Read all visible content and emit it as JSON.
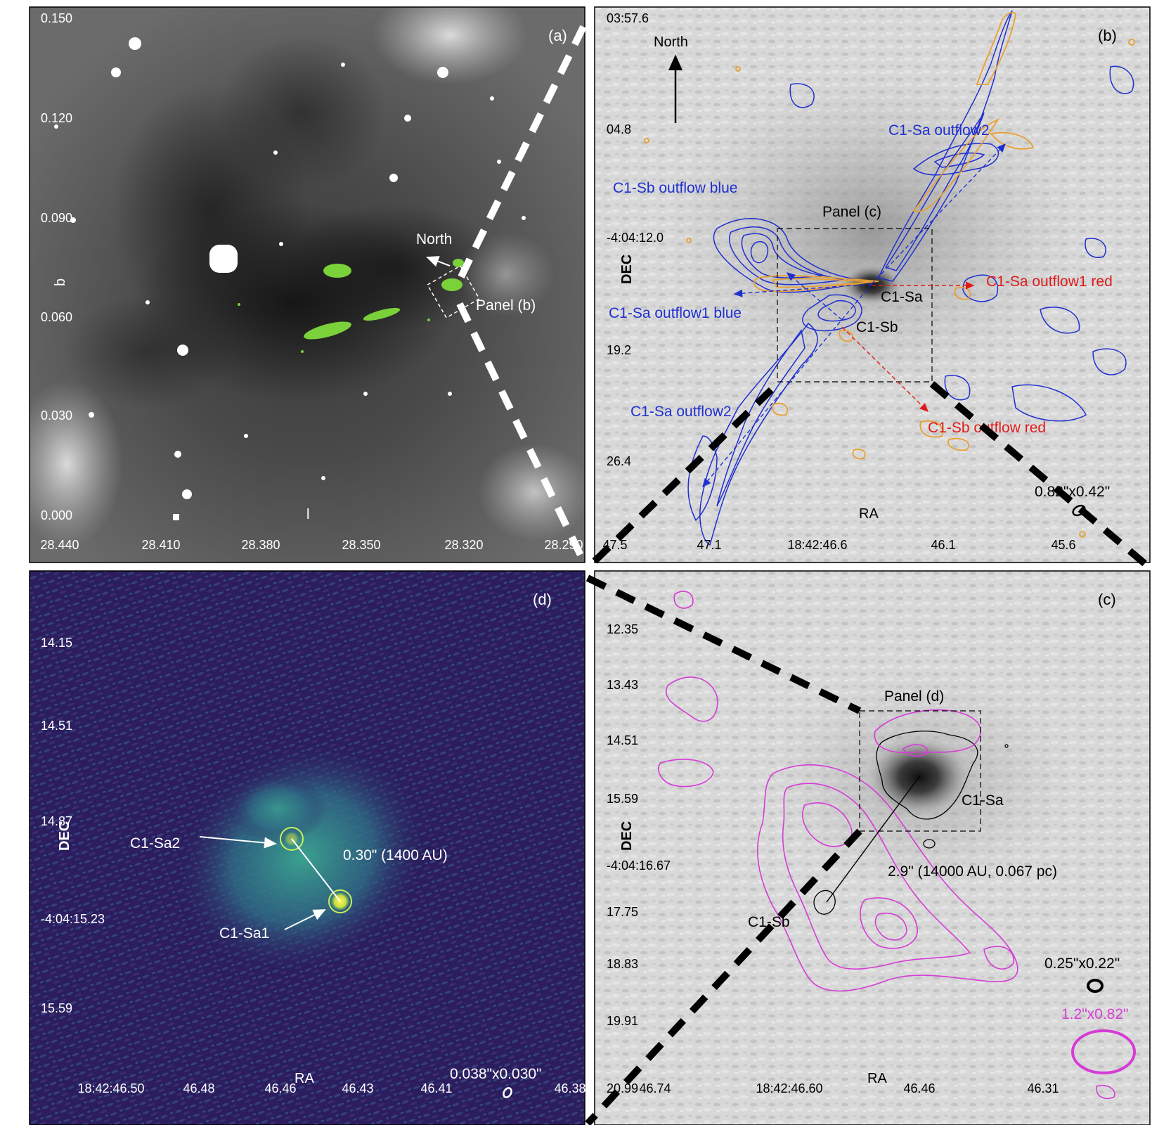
{
  "colors": {
    "blue_contour": "#1f2fd0",
    "orange_contour": "#e8a030",
    "red_arrow": "#e01a1a",
    "magenta_contour": "#d63cd6",
    "green_spots": "#7ad13a",
    "panel_d_background": "#2b1d5e",
    "panel_d_emission": "#2f8f8a"
  },
  "panel_a": {
    "letter": "(a)",
    "ylabel": "b",
    "xlabel": "l",
    "north_label": "North",
    "box_label": "Panel (b)",
    "xticks": [
      "28.440",
      "28.410",
      "28.380",
      "28.350",
      "28.320",
      "28.290"
    ],
    "yticks": [
      "0.150",
      "0.120",
      "0.090",
      "0.060",
      "0.030",
      "0.000"
    ]
  },
  "panel_b": {
    "letter": "(b)",
    "north_label": "North",
    "xlabel": "RA",
    "ylabel": "DEC",
    "box_label": "Panel (c)",
    "beam_label": "0.82\"x0.42\"",
    "xticks": [
      "47.5",
      "47.1",
      "18:42:46.6",
      "46.1",
      "45.6"
    ],
    "yticks": [
      "03:57.6",
      "04.8",
      "-4:04:12.0",
      "19.2",
      "26.4"
    ],
    "labels": {
      "sb_blue": "C1-Sb outflow blue",
      "sa_outflow2_top": "C1-Sa outflow2",
      "sa_outflow1_red": "C1-Sa outflow1 red",
      "sa": "C1-Sa",
      "sa_outflow1_blue": "C1-Sa outflow1 blue",
      "sb": "C1-Sb",
      "sa_outflow2_bottom": "C1-Sa outflow2",
      "sb_red": "C1-Sb outflow red"
    }
  },
  "panel_c": {
    "letter": "(c)",
    "xlabel": "RA",
    "ylabel": "DEC",
    "box_label": "Panel (d)",
    "sa_label": "C1-Sa",
    "sb_label": "C1-Sb",
    "separation_label": "2.9\" (14000 AU, 0.067 pc)",
    "beam_black": "0.25\"x0.22\"",
    "beam_magenta": "1.2\"x0.82\"",
    "xticks": [
      "46.74",
      "18:42:46.60",
      "46.46",
      "46.31"
    ],
    "yticks": [
      "12.35",
      "13.43",
      "14.51",
      "15.59",
      "-4:04:16.67",
      "17.75",
      "18.83",
      "19.91",
      "20.99"
    ]
  },
  "panel_d": {
    "letter": "(d)",
    "xlabel": "RA",
    "ylabel": "DEC",
    "sa2_label": "C1-Sa2",
    "sa1_label": "C1-Sa1",
    "separation_label": "0.30\" (1400 AU)",
    "beam_label": "0.038\"x0.030\"",
    "xticks": [
      "18:42:46.50",
      "46.48",
      "46.46",
      "46.43",
      "46.41",
      "46.38"
    ],
    "yticks": [
      "14.15",
      "14.51",
      "14.87",
      "-4:04:15.23",
      "15.59"
    ]
  }
}
